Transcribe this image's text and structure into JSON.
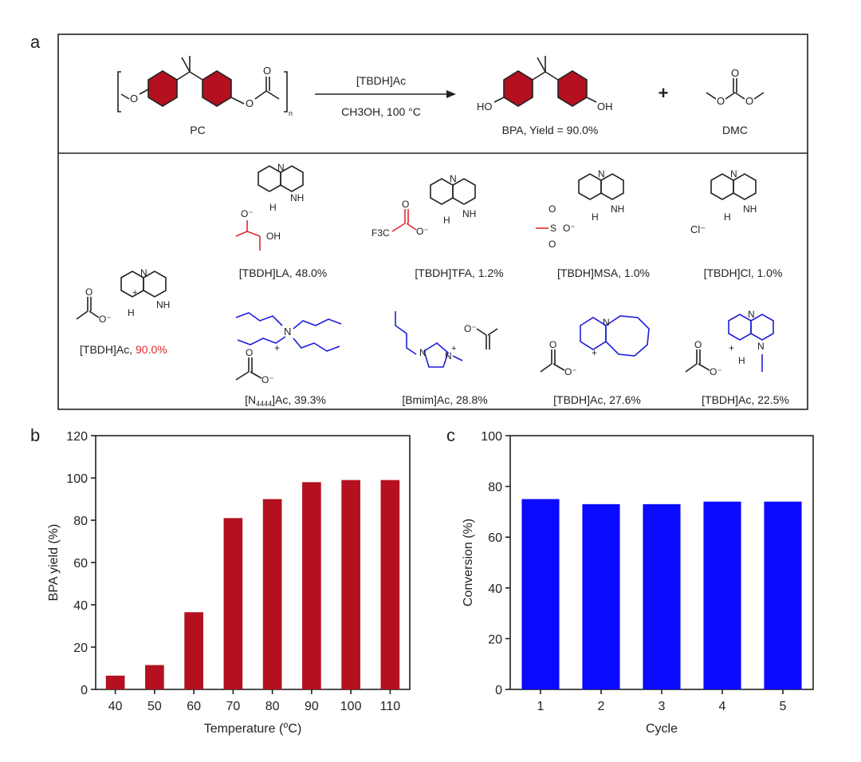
{
  "panel_labels": {
    "a": "a",
    "b": "b",
    "c": "c"
  },
  "reaction": {
    "reactant": "PC",
    "reactant_sub": "n",
    "reagent_top": "[TBDH]Ac",
    "reagent_bottom": "CH3OH, 100 °C",
    "product1": "BPA, Yield = 90.0%",
    "plus": "+",
    "product2": "DMC",
    "atom_o": "O",
    "atom_ho": "HO",
    "atom_oh": "OH"
  },
  "catalysts": {
    "main_name": "[TBDH]Ac, ",
    "main_yield": "90.0%",
    "items": [
      {
        "label": "[TBDH]LA, 48.0%"
      },
      {
        "label": "[TBDH]TFA, 1.2%"
      },
      {
        "label": "[TBDH]MSA, 1.0%"
      },
      {
        "label": "[TBDH]Cl, 1.0%"
      },
      {
        "label_pre": "[N",
        "label_sub": "4444",
        "label_post": "]Ac, 39.3%"
      },
      {
        "label": "[Bmim]Ac, 28.8%"
      },
      {
        "label": "[TBDH]Ac, 27.6%"
      },
      {
        "label": "[TBDH]Ac, 22.5%"
      }
    ],
    "atoms": {
      "n": "N",
      "nh": "NH",
      "h": "H",
      "nplus": "+",
      "o": "O",
      "ominus": "O⁻",
      "oh": "OH",
      "f3c": "F3C",
      "s": "S",
      "cl": "Cl⁻",
      "minus": "−"
    }
  },
  "colors": {
    "bar_b": "#b4101f",
    "bar_c": "#0a0aff",
    "red_text": "#e0262c",
    "blue_struct": "#1d1dd8"
  },
  "chart_data": [
    {
      "type": "bar",
      "title": "",
      "xlabel": "Temperature (oC)",
      "xlabel_pre": "Temperature (",
      "xlabel_sup": "o",
      "xlabel_post": "C)",
      "ylabel": "BPA yield (%)",
      "categories": [
        "40",
        "50",
        "60",
        "70",
        "80",
        "90",
        "100",
        "110"
      ],
      "values": [
        6.5,
        11.5,
        36.5,
        81,
        90,
        98,
        99,
        99
      ],
      "ylim": [
        0,
        120
      ],
      "yticks": [
        "0",
        "20",
        "40",
        "60",
        "80",
        "100",
        "120"
      ],
      "grid": false
    },
    {
      "type": "bar",
      "title": "",
      "xlabel": "Cycle",
      "ylabel": "Conversion (%)",
      "categories": [
        "1",
        "2",
        "3",
        "4",
        "5"
      ],
      "values": [
        75,
        73,
        73,
        74,
        74
      ],
      "ylim": [
        0,
        100
      ],
      "yticks": [
        "0",
        "20",
        "40",
        "60",
        "80",
        "100"
      ],
      "grid": false
    }
  ]
}
